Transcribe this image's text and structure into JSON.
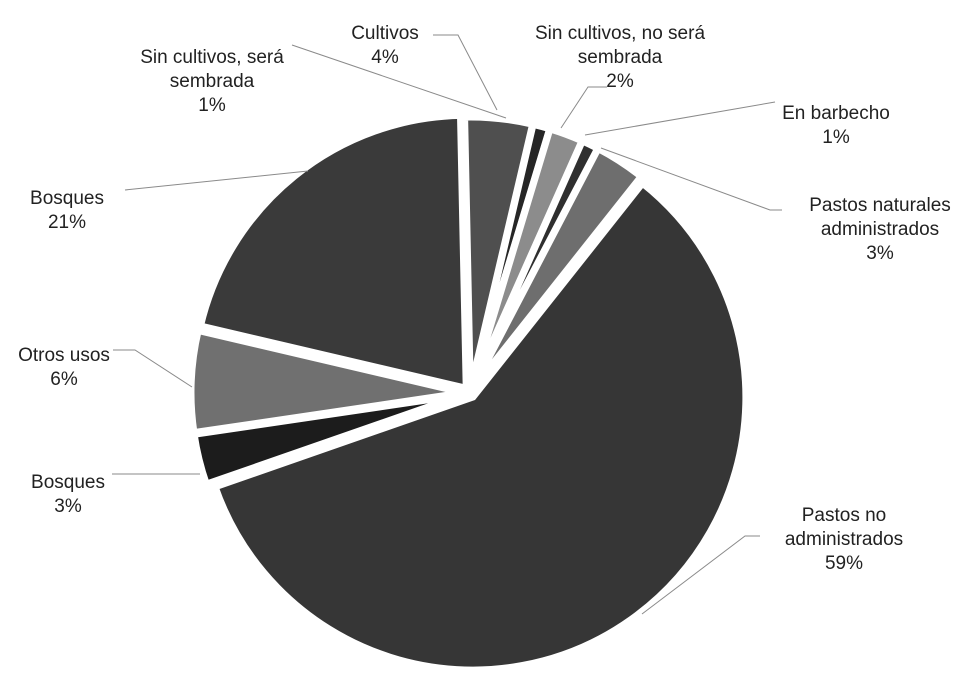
{
  "chart_data": {
    "type": "pie",
    "title": "",
    "slices": [
      {
        "name": "Cultivos",
        "lines": [
          "Cultivos"
        ],
        "percent_label": "4%",
        "value": 4,
        "color": "#4f4f4f"
      },
      {
        "name": "Sin cultivos, será sembrada",
        "lines": [
          "Sin cultivos, será",
          "sembrada"
        ],
        "percent_label": "1%",
        "value": 1,
        "color": "#262626"
      },
      {
        "name": "Sin cultivos, no será sembrada",
        "lines": [
          "Sin cultivos, no será",
          "sembrada"
        ],
        "percent_label": "2%",
        "value": 2,
        "color": "#8c8c8c"
      },
      {
        "name": "En barbecho",
        "lines": [
          "En barbecho"
        ],
        "percent_label": "1%",
        "value": 1,
        "color": "#2f2f2f"
      },
      {
        "name": "Pastos naturales administrados",
        "lines": [
          "Pastos naturales",
          "administrados"
        ],
        "percent_label": "3%",
        "value": 3,
        "color": "#6e6e6e"
      },
      {
        "name": "Pastos no administrados",
        "lines": [
          "Pastos no",
          "administrados"
        ],
        "percent_label": "59%",
        "value": 59,
        "color": "#363636"
      },
      {
        "name": "Bosques",
        "lines": [
          "Bosques"
        ],
        "percent_label": "3%",
        "value": 3,
        "color": "#1c1c1c"
      },
      {
        "name": "Otros usos",
        "lines": [
          "Otros usos"
        ],
        "percent_label": "6%",
        "value": 6,
        "color": "#707070"
      },
      {
        "name": "Bosques",
        "lines": [
          "Bosques"
        ],
        "percent_label": "21%",
        "value": 21,
        "color": "#3a3a3a"
      }
    ]
  }
}
